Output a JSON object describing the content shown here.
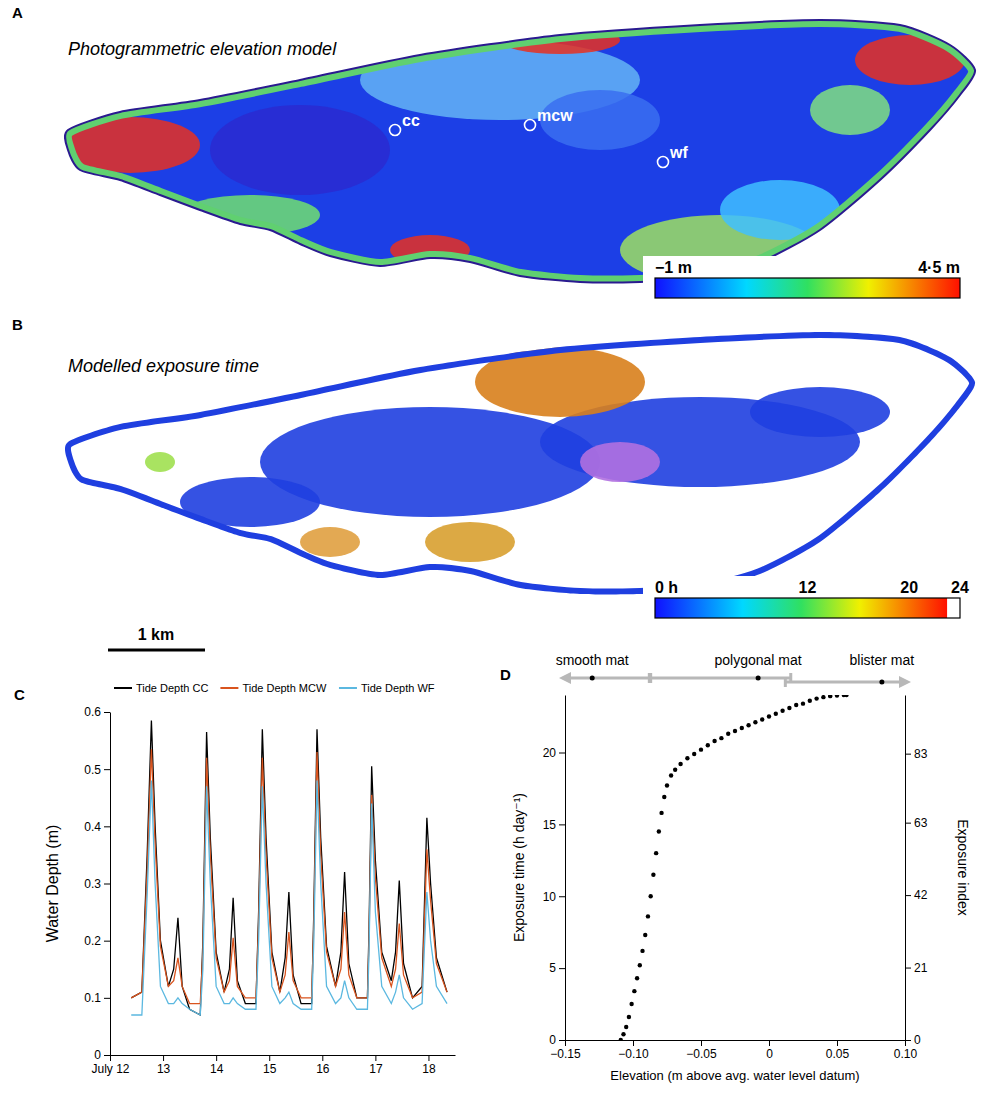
{
  "chart_data": [
    {
      "type": "map",
      "panel": "A",
      "title": "Photogrammetric elevation model",
      "sites": [
        "cc",
        "mcw",
        "wf"
      ],
      "colorbar_range": [
        -1,
        4.5
      ],
      "colorbar_ticks": [
        {
          "value": -1,
          "label": "−1 m"
        },
        {
          "value": 4.5,
          "label": "4·5 m"
        }
      ]
    },
    {
      "type": "map",
      "panel": "B",
      "title": "Modelled exposure time",
      "colorbar_range": [
        0,
        24
      ],
      "colorbar_ticks": [
        {
          "value": 0,
          "label": "0 h"
        },
        12,
        20,
        24
      ],
      "colorbar_white_from": 23,
      "scale_bar": "1 km"
    },
    {
      "type": "line",
      "panel": "C",
      "y_label": "Water Depth (m)",
      "x": [
        12.4,
        12.6,
        12.7,
        12.78,
        12.85,
        12.95,
        13.1,
        13.2,
        13.28,
        13.36,
        13.5,
        13.7,
        13.75,
        13.82,
        13.89,
        14.0,
        14.15,
        14.25,
        14.32,
        14.4,
        14.55,
        14.75,
        14.8,
        14.87,
        14.94,
        15.05,
        15.2,
        15.3,
        15.37,
        15.45,
        15.6,
        15.8,
        15.84,
        15.9,
        15.97,
        16.08,
        16.25,
        16.35,
        16.42,
        16.5,
        16.65,
        16.85,
        16.88,
        16.93,
        17.0,
        17.12,
        17.3,
        17.38,
        17.45,
        17.53,
        17.7,
        17.88,
        17.92,
        17.97,
        18.04,
        18.15,
        18.35
      ],
      "xlim": [
        12,
        18.5
      ],
      "xticks": [
        {
          "value": 12,
          "label": "July 12"
        },
        13,
        14,
        15,
        16,
        17,
        18
      ],
      "ylim": [
        0,
        0.6
      ],
      "yticks": [
        0,
        0.1,
        0.2,
        0.3,
        0.4,
        0.5,
        0.6
      ],
      "legend": "top",
      "series": [
        {
          "name": "Tide Depth CC",
          "color": "#000000",
          "values": [
            0.1,
            0.11,
            0.35,
            0.585,
            0.4,
            0.2,
            0.12,
            0.15,
            0.24,
            0.12,
            0.08,
            0.07,
            0.2,
            0.565,
            0.38,
            0.18,
            0.11,
            0.15,
            0.275,
            0.13,
            0.09,
            0.09,
            0.25,
            0.57,
            0.38,
            0.18,
            0.11,
            0.17,
            0.285,
            0.14,
            0.09,
            0.09,
            0.25,
            0.57,
            0.38,
            0.19,
            0.12,
            0.18,
            0.32,
            0.16,
            0.1,
            0.1,
            0.22,
            0.505,
            0.34,
            0.18,
            0.13,
            0.18,
            0.305,
            0.16,
            0.1,
            0.12,
            0.25,
            0.415,
            0.3,
            0.17,
            0.11
          ]
        },
        {
          "name": "Tide Depth MCW",
          "color": "#d9541e",
          "values": [
            0.1,
            0.11,
            0.32,
            0.535,
            0.37,
            0.19,
            0.12,
            0.13,
            0.17,
            0.12,
            0.09,
            0.09,
            0.18,
            0.52,
            0.35,
            0.17,
            0.11,
            0.13,
            0.205,
            0.12,
            0.1,
            0.1,
            0.23,
            0.52,
            0.35,
            0.17,
            0.11,
            0.14,
            0.215,
            0.13,
            0.1,
            0.1,
            0.23,
            0.53,
            0.35,
            0.18,
            0.12,
            0.15,
            0.25,
            0.14,
            0.1,
            0.1,
            0.2,
            0.455,
            0.31,
            0.17,
            0.12,
            0.15,
            0.23,
            0.14,
            0.1,
            0.11,
            0.22,
            0.36,
            0.27,
            0.16,
            0.11
          ]
        },
        {
          "name": "Tide Depth WF",
          "color": "#5bb8e0",
          "values": [
            0.07,
            0.07,
            0.28,
            0.48,
            0.3,
            0.12,
            0.09,
            0.09,
            0.1,
            0.09,
            0.08,
            0.07,
            0.15,
            0.47,
            0.3,
            0.12,
            0.09,
            0.09,
            0.1,
            0.09,
            0.08,
            0.08,
            0.2,
            0.47,
            0.3,
            0.12,
            0.09,
            0.1,
            0.11,
            0.09,
            0.08,
            0.08,
            0.2,
            0.48,
            0.3,
            0.12,
            0.09,
            0.1,
            0.13,
            0.1,
            0.08,
            0.08,
            0.18,
            0.44,
            0.25,
            0.12,
            0.09,
            0.11,
            0.14,
            0.1,
            0.08,
            0.09,
            0.18,
            0.285,
            0.2,
            0.12,
            0.09
          ]
        }
      ]
    },
    {
      "type": "scatter",
      "panel": "D",
      "x_label": "Elevation (m above avg. water level datum)",
      "y_label": "Exposure time (h day⁻¹)",
      "y2_label": "Exposure index",
      "color": "#000000",
      "marker": "circle",
      "x": [
        -0.109,
        -0.107,
        -0.105,
        -0.103,
        -0.101,
        -0.099,
        -0.097,
        -0.095,
        -0.093,
        -0.091,
        -0.089,
        -0.087,
        -0.085,
        -0.083,
        -0.081,
        -0.079,
        -0.077,
        -0.075,
        -0.072,
        -0.069,
        -0.065,
        -0.06,
        -0.055,
        -0.05,
        -0.045,
        -0.04,
        -0.035,
        -0.03,
        -0.025,
        -0.02,
        -0.015,
        -0.01,
        -0.005,
        0,
        0.005,
        0.01,
        0.015,
        0.02,
        0.025,
        0.03,
        0.035,
        0.04,
        0.045,
        0.05,
        0.055,
        0.057
      ],
      "values": [
        0,
        0.4,
        0.9,
        1.6,
        2.5,
        3.4,
        4.3,
        5.2,
        6.2,
        7.3,
        8.6,
        10,
        11.5,
        13,
        14.5,
        15.8,
        16.9,
        17.7,
        18.4,
        18.8,
        19.2,
        19.6,
        19.9,
        20.2,
        20.5,
        20.8,
        21.0,
        21.3,
        21.5,
        21.7,
        21.9,
        22.1,
        22.3,
        22.5,
        22.7,
        22.9,
        23.1,
        23.3,
        23.4,
        23.6,
        23.75,
        23.85,
        23.92,
        23.97,
        24,
        24
      ],
      "xlim": [
        -0.15,
        0.1
      ],
      "xticks": [
        {
          "value": -0.15,
          "label": "−0.15"
        },
        {
          "value": -0.1,
          "label": "−0.10"
        },
        {
          "value": -0.05,
          "label": "−0.05"
        },
        0,
        0.05,
        {
          "value": 0.1,
          "label": "0.10"
        }
      ],
      "ylim": [
        0,
        24
      ],
      "yticks": [
        0,
        5,
        10,
        15,
        20
      ],
      "y2lim": [
        0,
        100
      ],
      "y2ticks": [
        0,
        21,
        42,
        63,
        83
      ],
      "mat_ranges": [
        {
          "label": "smooth mat",
          "start": -0.15,
          "end": -0.088,
          "point": -0.13
        },
        {
          "label": "polygonal mat",
          "start": -0.087,
          "end": 0.016,
          "point": -0.008
        },
        {
          "label": "blister mat",
          "start": 0.012,
          "end": 0.1,
          "point": 0.083
        }
      ]
    }
  ]
}
